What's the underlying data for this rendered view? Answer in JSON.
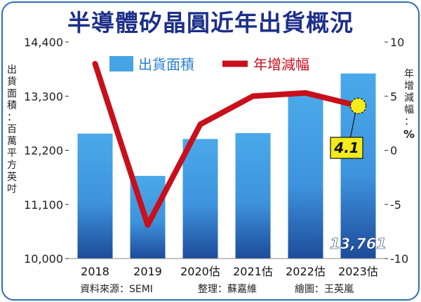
{
  "title": "半導體矽晶圓近年出貨概況",
  "left_axis_label": "出貨面積：百萬平方英吋",
  "right_axis_label": "年增減幅：",
  "right_axis_unit": "%",
  "footer": {
    "source": "資料來源：SEMI",
    "editor": "整理：蘇嘉維",
    "artist": "繪圖：王英嵐"
  },
  "chart_data": {
    "type": "bar",
    "categories": [
      "2018",
      "2019",
      "2020估",
      "2021估",
      "2022估",
      "2023估"
    ],
    "series": [
      {
        "name": "出貨面積",
        "type": "bar",
        "axis": "left",
        "values": [
          12540,
          11680,
          12430,
          12550,
          13310,
          13761
        ]
      },
      {
        "name": "年增減幅",
        "type": "line",
        "axis": "right",
        "values": [
          8.0,
          -6.9,
          2.4,
          5.0,
          5.3,
          4.1
        ]
      }
    ],
    "left_axis": {
      "min": 10000,
      "max": 14400,
      "ticks": [
        "10,000",
        "11,100",
        "12,200",
        "13,300",
        "14,400"
      ],
      "tick_values": [
        10000,
        11100,
        12200,
        13300,
        14400
      ]
    },
    "right_axis": {
      "min": -10,
      "max": 10,
      "ticks": [
        "-10",
        "-5",
        "0",
        "5",
        "10"
      ],
      "tick_values": [
        -10,
        -5,
        0,
        5,
        10
      ]
    },
    "annotations": [
      {
        "text": "13,761",
        "category": "2023估",
        "series": "出貨面積"
      },
      {
        "text": "4.1",
        "category": "2023估",
        "series": "年增減幅"
      }
    ],
    "legend_position": "top",
    "grid": false,
    "colors": {
      "bar_top": "#4aa9ea",
      "bar_bottom": "#1d4b9a",
      "line": "#c80f1c",
      "callout_fill": "#f3ec1a",
      "title": "#1d2f8a",
      "frame": "#2b6fb3"
    }
  }
}
